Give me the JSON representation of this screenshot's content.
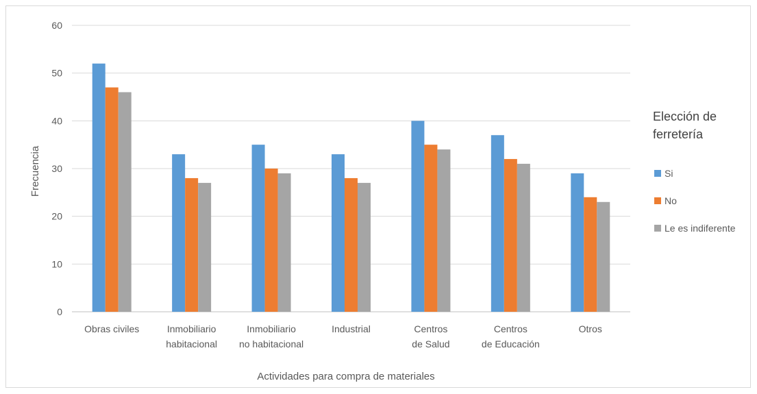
{
  "chart_data": {
    "type": "bar",
    "title": "",
    "xlabel": "Actividades para compra de materiales",
    "ylabel": "Frecuencia",
    "ylim": [
      0,
      60
    ],
    "yticks": [
      0,
      10,
      20,
      30,
      40,
      50,
      60
    ],
    "grid": true,
    "legend_position": "right",
    "legend_title": "Elección de ferretería",
    "categories": [
      "Obras civiles",
      "Inmobiliario habitacional",
      "Inmobiliario no habitacional",
      "Industrial",
      "Centros de Salud",
      "Centros de Educación",
      "Otros"
    ],
    "series": [
      {
        "name": "Si",
        "color": "#5B9BD5",
        "values": [
          52,
          33,
          35,
          33,
          40,
          37,
          29
        ]
      },
      {
        "name": "No",
        "color": "#ED7D31",
        "values": [
          47,
          28,
          30,
          28,
          35,
          32,
          24
        ]
      },
      {
        "name": "Le es indiferente",
        "color": "#A5A5A5",
        "values": [
          46,
          27,
          29,
          27,
          34,
          31,
          23
        ]
      }
    ]
  }
}
